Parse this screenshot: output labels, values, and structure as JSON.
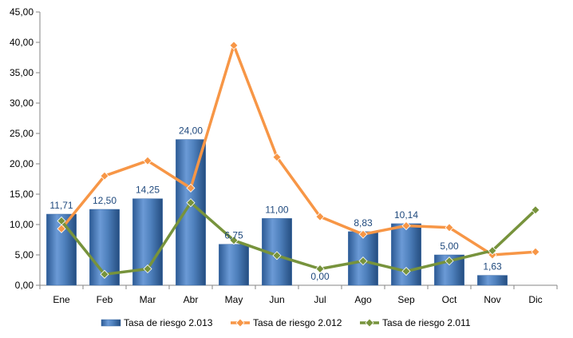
{
  "chart_data": {
    "type": "bar",
    "categories": [
      "Ene",
      "Feb",
      "Mar",
      "Abr",
      "May",
      "Jun",
      "Jul",
      "Ago",
      "Sep",
      "Oct",
      "Nov",
      "Dic"
    ],
    "ylim": [
      0,
      45
    ],
    "ytick_step": 5,
    "ytick_labels": [
      "0,00",
      "5,00",
      "10,00",
      "15,00",
      "20,00",
      "25,00",
      "30,00",
      "35,00",
      "40,00",
      "45,00"
    ],
    "grid": false,
    "legend_position": "bottom",
    "series": [
      {
        "name": "Tasa de riesgo 2.013",
        "type": "bar",
        "color": "#4f81bd",
        "values": [
          11.71,
          12.5,
          14.25,
          24.0,
          6.75,
          11.0,
          0.0,
          8.83,
          10.14,
          5.0,
          1.63,
          null
        ],
        "data_labels": [
          "11,71",
          "12,50",
          "14,25",
          "24,00",
          "6,75",
          "11,00",
          "0,00",
          "8,83",
          "10,14",
          "5,00",
          "1,63",
          ""
        ]
      },
      {
        "name": "Tasa de riesgo 2.012",
        "type": "line",
        "color": "#f79646",
        "marker": "diamond",
        "values": [
          9.3,
          18.0,
          20.5,
          16.0,
          39.5,
          21.1,
          11.3,
          8.4,
          9.8,
          9.5,
          5.0,
          5.5
        ]
      },
      {
        "name": "Tasa de riesgo 2.011",
        "type": "line",
        "color": "#77933c",
        "marker": "diamond",
        "values": [
          10.6,
          1.8,
          2.7,
          13.6,
          7.4,
          4.9,
          2.7,
          4.0,
          2.3,
          4.0,
          5.7,
          12.4
        ]
      }
    ]
  }
}
